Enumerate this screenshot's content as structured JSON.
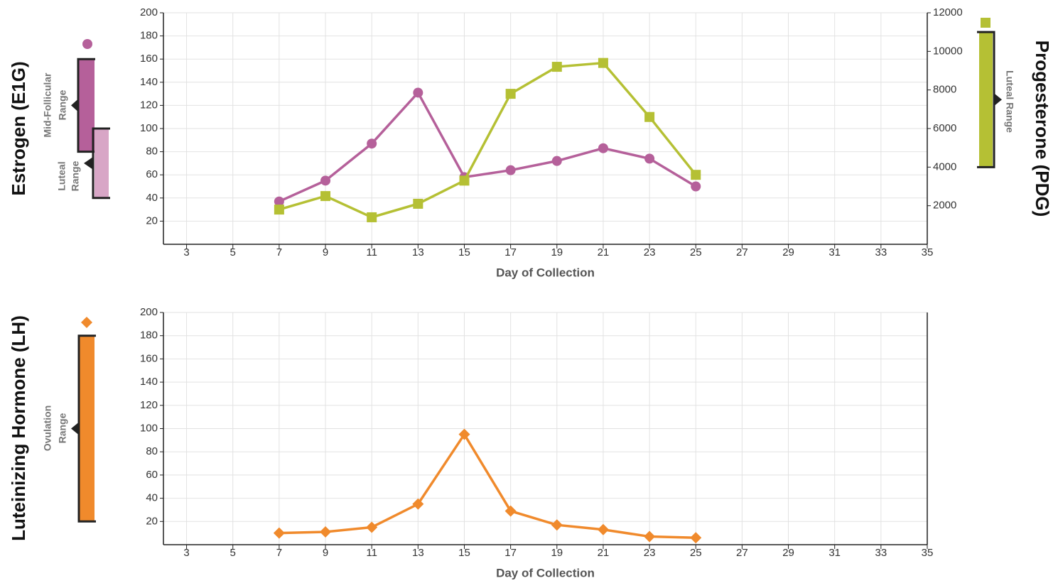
{
  "chart_data": [
    {
      "type": "line",
      "y_label": "Estrogen (E1G)",
      "y2_label": "Progesterone (PDG)",
      "x_label": "Day of Collection",
      "xlim": [
        2,
        35
      ],
      "xticks": [
        3,
        5,
        7,
        9,
        11,
        13,
        15,
        17,
        19,
        21,
        23,
        25,
        27,
        29,
        31,
        33,
        35
      ],
      "ylim": [
        0,
        200
      ],
      "yticks": [
        20,
        40,
        60,
        80,
        100,
        120,
        140,
        160,
        180,
        200
      ],
      "y2lim": [
        0,
        12000
      ],
      "y2ticks": [
        2000,
        4000,
        6000,
        8000,
        10000,
        12000
      ],
      "grid": true,
      "x": [
        7,
        9,
        11,
        13,
        15,
        17,
        19,
        21,
        23,
        25
      ],
      "series": [
        {
          "color": "#b5609a",
          "marker": "circle",
          "axis": "y",
          "values": [
            37,
            55,
            87,
            131,
            58,
            64,
            72,
            83,
            74,
            50
          ]
        },
        {
          "color": "#b5c034",
          "marker": "square",
          "axis": "y2",
          "values": [
            1800,
            2500,
            1400,
            2100,
            3300,
            7800,
            9200,
            9400,
            6600,
            3600
          ]
        }
      ],
      "ranges": [
        {
          "label": [
            "Mid-Follicular",
            "Range"
          ],
          "axis": "y",
          "low": 80,
          "high": 160,
          "color": "#b5609a"
        },
        {
          "label": [
            "Luteal",
            "Range"
          ],
          "axis": "y",
          "low": 40,
          "high": 100,
          "color": "#d8a6c6"
        },
        {
          "label": [
            "Luteal Range"
          ],
          "axis": "y2",
          "low": 4000,
          "high": 11000,
          "color": "#b5c034"
        }
      ]
    },
    {
      "type": "line",
      "y_label": "Luteinizing Hormone (LH)",
      "x_label": "Day of Collection",
      "xlim": [
        2,
        35
      ],
      "xticks": [
        3,
        5,
        7,
        9,
        11,
        13,
        15,
        17,
        19,
        21,
        23,
        25,
        27,
        29,
        31,
        33,
        35
      ],
      "ylim": [
        0,
        200
      ],
      "yticks": [
        20,
        40,
        60,
        80,
        100,
        120,
        140,
        160,
        180,
        200
      ],
      "grid": true,
      "x": [
        7,
        9,
        11,
        13,
        15,
        17,
        19,
        21,
        23,
        25
      ],
      "series": [
        {
          "color": "#f08a2c",
          "marker": "diamond",
          "axis": "y",
          "values": [
            10,
            11,
            15,
            35,
            95,
            29,
            17,
            13,
            7,
            6
          ]
        }
      ],
      "ranges": [
        {
          "label": [
            "Ovulation",
            "Range"
          ],
          "axis": "y",
          "low": 20,
          "high": 180,
          "color": "#f08a2c"
        }
      ]
    }
  ]
}
